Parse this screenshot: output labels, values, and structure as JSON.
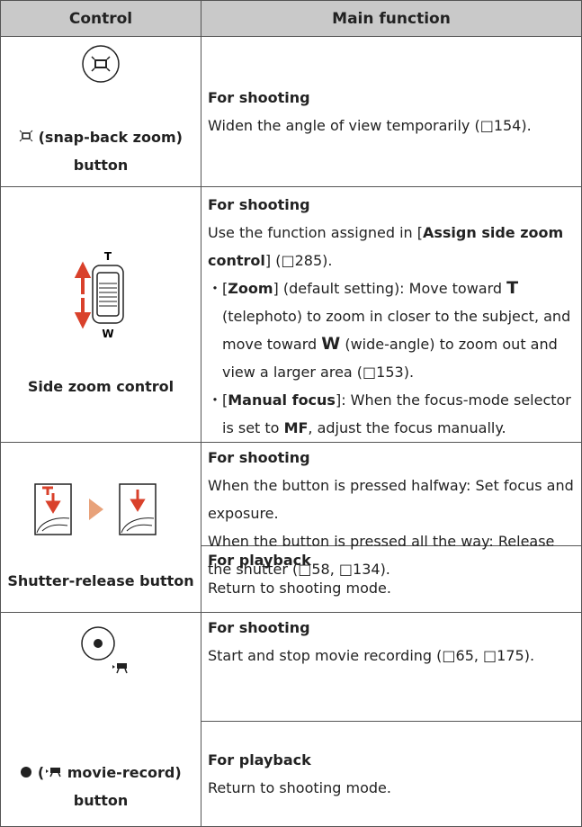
{
  "header": {
    "control": "Control",
    "function": "Main function"
  },
  "rows": [
    {
      "control": "(snap-back zoom) button",
      "sections": [
        {
          "heading": "For shooting",
          "paragraphs": [
            [
              "Widen the angle of view temporarily (□154)."
            ]
          ]
        }
      ]
    },
    {
      "control": "Side zoom control",
      "dial": {
        "top": "T",
        "bottom": "W"
      },
      "sections": [
        {
          "heading": "For shooting",
          "paragraphs": [
            [
              "Use the function assigned in [",
              "Assign side zoom control",
              "] (□285)."
            ]
          ],
          "items": [
            [
              "・[",
              "Zoom",
              "] (default setting): Move toward ",
              "T",
              " (telephoto) to zoom in closer to the subject, and move toward ",
              "W",
              " (wide-angle) to zoom out and view a larger area (□153)."
            ],
            [
              "・[",
              "Manual focus",
              "]: When the focus-mode selector is set to ",
              "MF",
              ", adjust the focus manually."
            ]
          ]
        }
      ]
    },
    {
      "control": "Shutter-release button",
      "sections": [
        {
          "heading": "For shooting",
          "paragraphs": [
            [
              "When the button is pressed halfway: Set focus and exposure."
            ],
            [
              "When the button is pressed all the way: Release the shutter (□58, □134)."
            ]
          ]
        },
        {
          "heading": "For playback",
          "paragraphs": [
            [
              "Return to shooting mode."
            ]
          ]
        }
      ]
    },
    {
      "control": [
        "(",
        "movie-record) button"
      ],
      "sections": [
        {
          "heading": "For shooting",
          "paragraphs": [
            [
              "Start and stop movie recording (□65, □175)."
            ]
          ]
        },
        {
          "heading": "For playback",
          "paragraphs": [
            [
              "Return to shooting mode."
            ]
          ]
        }
      ]
    }
  ]
}
